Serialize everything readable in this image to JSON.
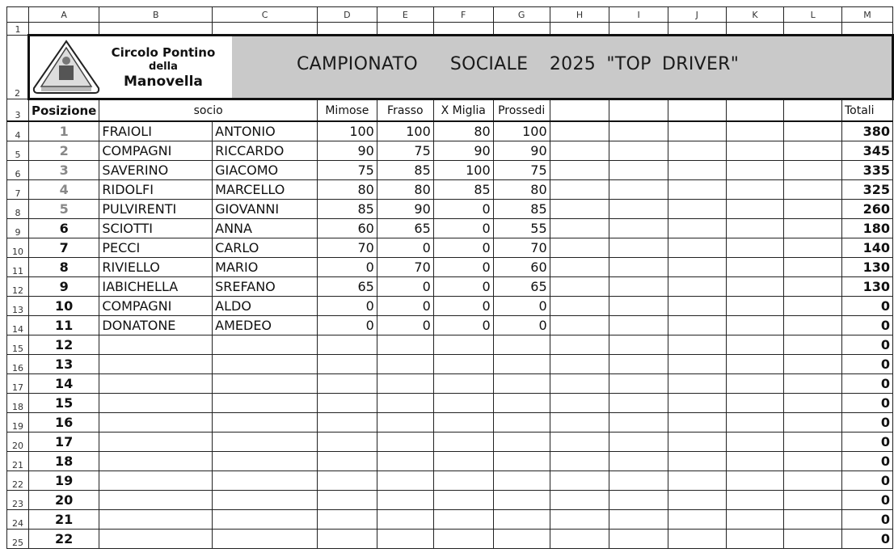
{
  "columns": [
    "A",
    "B",
    "C",
    "D",
    "E",
    "F",
    "G",
    "H",
    "I",
    "J",
    "K",
    "L",
    "M"
  ],
  "banner": {
    "club_line1": "Circolo Pontino",
    "club_line2": "della",
    "club_line3": "Manovella",
    "logo_text": "DELLA MANOVELLA",
    "title": "CAMPIONATO   SOCIALE  2025 \"TOP DRIVER\""
  },
  "headers": {
    "posizione": "Posizione",
    "socio": "socio",
    "events": [
      "Mimose",
      "Frasso",
      "X Miglia",
      "Prossedi"
    ],
    "totali": "Totali"
  },
  "rows": [
    {
      "pos": "1",
      "cognome": "FRAIOLI",
      "nome": "ANTONIO",
      "scores": [
        "100",
        "100",
        "80",
        "100"
      ],
      "totale": "380"
    },
    {
      "pos": "2",
      "cognome": "COMPAGNI",
      "nome": "RICCARDO",
      "scores": [
        "90",
        "75",
        "90",
        "90"
      ],
      "totale": "345"
    },
    {
      "pos": "3",
      "cognome": "SAVERINO",
      "nome": "GIACOMO",
      "scores": [
        "75",
        "85",
        "100",
        "75"
      ],
      "totale": "335"
    },
    {
      "pos": "4",
      "cognome": "RIDOLFI",
      "nome": "MARCELLO",
      "scores": [
        "80",
        "80",
        "85",
        "80"
      ],
      "totale": "325"
    },
    {
      "pos": "5",
      "cognome": "PULVIRENTI",
      "nome": "GIOVANNI",
      "scores": [
        "85",
        "90",
        "0",
        "85"
      ],
      "totale": "260"
    },
    {
      "pos": "6",
      "cognome": "SCIOTTI",
      "nome": "ANNA",
      "scores": [
        "60",
        "65",
        "0",
        "55"
      ],
      "totale": "180"
    },
    {
      "pos": "7",
      "cognome": "PECCI",
      "nome": "CARLO",
      "scores": [
        "70",
        "0",
        "0",
        "70"
      ],
      "totale": "140"
    },
    {
      "pos": "8",
      "cognome": "RIVIELLO",
      "nome": "MARIO",
      "scores": [
        "0",
        "70",
        "0",
        "60"
      ],
      "totale": "130"
    },
    {
      "pos": "9",
      "cognome": "IABICHELLA",
      "nome": "SREFANO",
      "scores": [
        "65",
        "0",
        "0",
        "65"
      ],
      "totale": "130"
    },
    {
      "pos": "10",
      "cognome": "COMPAGNI",
      "nome": "ALDO",
      "scores": [
        "0",
        "0",
        "0",
        "0"
      ],
      "totale": "0"
    },
    {
      "pos": "11",
      "cognome": "DONATONE",
      "nome": "AMEDEO",
      "scores": [
        "0",
        "0",
        "0",
        "0"
      ],
      "totale": "0"
    },
    {
      "pos": "12",
      "cognome": "",
      "nome": "",
      "scores": [
        "",
        "",
        "",
        ""
      ],
      "totale": "0"
    },
    {
      "pos": "13",
      "cognome": "",
      "nome": "",
      "scores": [
        "",
        "",
        "",
        ""
      ],
      "totale": "0"
    },
    {
      "pos": "14",
      "cognome": "",
      "nome": "",
      "scores": [
        "",
        "",
        "",
        ""
      ],
      "totale": "0"
    },
    {
      "pos": "15",
      "cognome": "",
      "nome": "",
      "scores": [
        "",
        "",
        "",
        ""
      ],
      "totale": "0"
    },
    {
      "pos": "16",
      "cognome": "",
      "nome": "",
      "scores": [
        "",
        "",
        "",
        ""
      ],
      "totale": "0"
    },
    {
      "pos": "17",
      "cognome": "",
      "nome": "",
      "scores": [
        "",
        "",
        "",
        ""
      ],
      "totale": "0"
    },
    {
      "pos": "18",
      "cognome": "",
      "nome": "",
      "scores": [
        "",
        "",
        "",
        ""
      ],
      "totale": "0"
    },
    {
      "pos": "19",
      "cognome": "",
      "nome": "",
      "scores": [
        "",
        "",
        "",
        ""
      ],
      "totale": "0"
    },
    {
      "pos": "20",
      "cognome": "",
      "nome": "",
      "scores": [
        "",
        "",
        "",
        ""
      ],
      "totale": "0"
    },
    {
      "pos": "21",
      "cognome": "",
      "nome": "",
      "scores": [
        "",
        "",
        "",
        ""
      ],
      "totale": "0"
    },
    {
      "pos": "22",
      "cognome": "",
      "nome": "",
      "scores": [
        "",
        "",
        "",
        ""
      ],
      "totale": "0"
    }
  ]
}
